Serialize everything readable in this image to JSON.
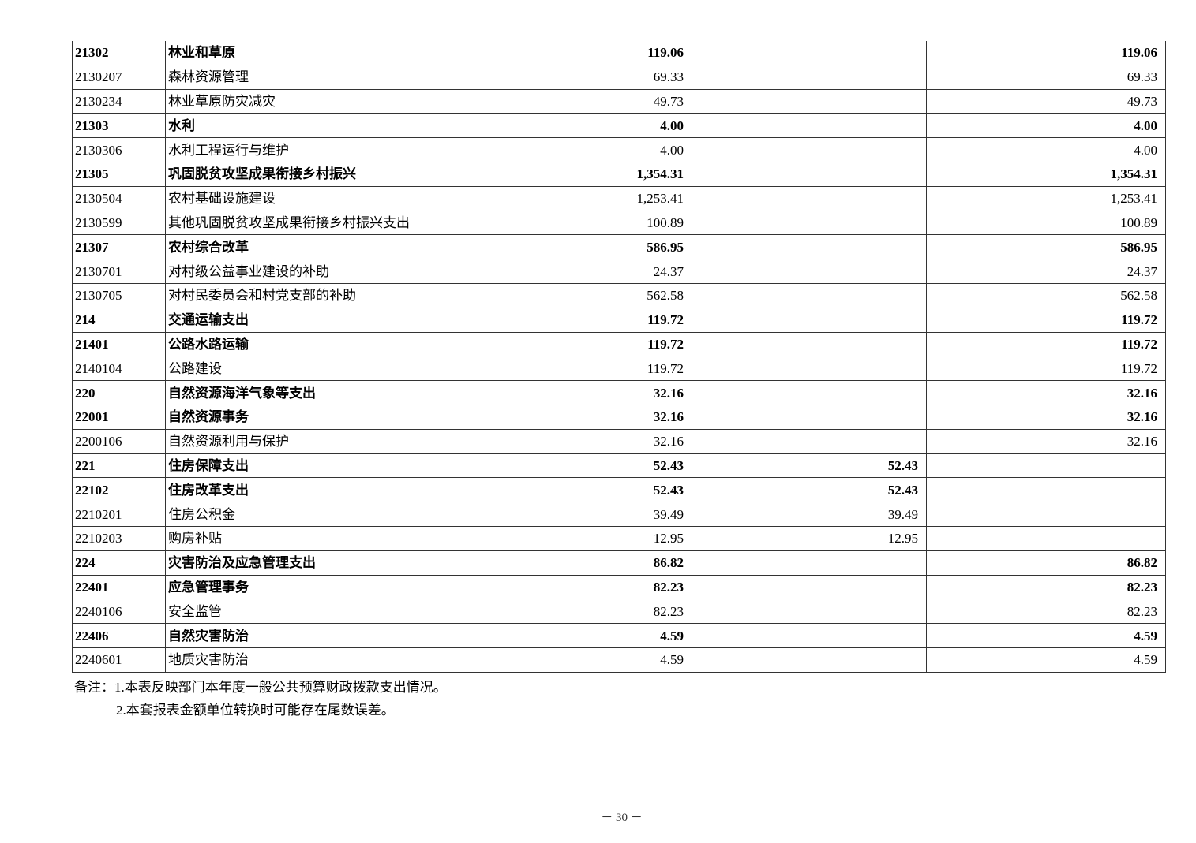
{
  "table": {
    "rows": [
      {
        "code": "21302",
        "name": "林业和草原",
        "total": "119.06",
        "basic": "",
        "project": "119.06",
        "bold": true
      },
      {
        "code": "2130207",
        "name": "森林资源管理",
        "total": "69.33",
        "basic": "",
        "project": "69.33",
        "bold": false
      },
      {
        "code": "2130234",
        "name": "林业草原防灾减灾",
        "total": "49.73",
        "basic": "",
        "project": "49.73",
        "bold": false
      },
      {
        "code": "21303",
        "name": "水利",
        "total": "4.00",
        "basic": "",
        "project": "4.00",
        "bold": true
      },
      {
        "code": "2130306",
        "name": "水利工程运行与维护",
        "total": "4.00",
        "basic": "",
        "project": "4.00",
        "bold": false
      },
      {
        "code": "21305",
        "name": "巩固脱贫攻坚成果衔接乡村振兴",
        "total": "1,354.31",
        "basic": "",
        "project": "1,354.31",
        "bold": true
      },
      {
        "code": "2130504",
        "name": "农村基础设施建设",
        "total": "1,253.41",
        "basic": "",
        "project": "1,253.41",
        "bold": false
      },
      {
        "code": "2130599",
        "name": "其他巩固脱贫攻坚成果衔接乡村振兴支出",
        "total": "100.89",
        "basic": "",
        "project": "100.89",
        "bold": false
      },
      {
        "code": "21307",
        "name": "农村综合改革",
        "total": "586.95",
        "basic": "",
        "project": "586.95",
        "bold": true
      },
      {
        "code": "2130701",
        "name": "对村级公益事业建设的补助",
        "total": "24.37",
        "basic": "",
        "project": "24.37",
        "bold": false
      },
      {
        "code": "2130705",
        "name": "对村民委员会和村党支部的补助",
        "total": "562.58",
        "basic": "",
        "project": "562.58",
        "bold": false
      },
      {
        "code": "214",
        "name": "交通运输支出",
        "total": "119.72",
        "basic": "",
        "project": "119.72",
        "bold": true
      },
      {
        "code": "21401",
        "name": "公路水路运输",
        "total": "119.72",
        "basic": "",
        "project": "119.72",
        "bold": true
      },
      {
        "code": "2140104",
        "name": "公路建设",
        "total": "119.72",
        "basic": "",
        "project": "119.72",
        "bold": false
      },
      {
        "code": "220",
        "name": "自然资源海洋气象等支出",
        "total": "32.16",
        "basic": "",
        "project": "32.16",
        "bold": true
      },
      {
        "code": "22001",
        "name": "自然资源事务",
        "total": "32.16",
        "basic": "",
        "project": "32.16",
        "bold": true
      },
      {
        "code": "2200106",
        "name": "自然资源利用与保护",
        "total": "32.16",
        "basic": "",
        "project": "32.16",
        "bold": false
      },
      {
        "code": "221",
        "name": "住房保障支出",
        "total": "52.43",
        "basic": "52.43",
        "project": "",
        "bold": true
      },
      {
        "code": "22102",
        "name": "住房改革支出",
        "total": "52.43",
        "basic": "52.43",
        "project": "",
        "bold": true
      },
      {
        "code": "2210201",
        "name": "住房公积金",
        "total": "39.49",
        "basic": "39.49",
        "project": "",
        "bold": false
      },
      {
        "code": "2210203",
        "name": "购房补贴",
        "total": "12.95",
        "basic": "12.95",
        "project": "",
        "bold": false
      },
      {
        "code": "224",
        "name": "灾害防治及应急管理支出",
        "total": "86.82",
        "basic": "",
        "project": "86.82",
        "bold": true
      },
      {
        "code": "22401",
        "name": "应急管理事务",
        "total": "82.23",
        "basic": "",
        "project": "82.23",
        "bold": true
      },
      {
        "code": "2240106",
        "name": "安全监管",
        "total": "82.23",
        "basic": "",
        "project": "82.23",
        "bold": false
      },
      {
        "code": "22406",
        "name": "自然灾害防治",
        "total": "4.59",
        "basic": "",
        "project": "4.59",
        "bold": true
      },
      {
        "code": "2240601",
        "name": "地质灾害防治",
        "total": "4.59",
        "basic": "",
        "project": "4.59",
        "bold": false
      }
    ]
  },
  "notes": {
    "line1": "备注：1.本表反映部门本年度一般公共预算财政拨款支出情况。",
    "line2": "2.本套报表金额单位转换时可能存在尾数误差。"
  },
  "page_number": "－ 30 －"
}
